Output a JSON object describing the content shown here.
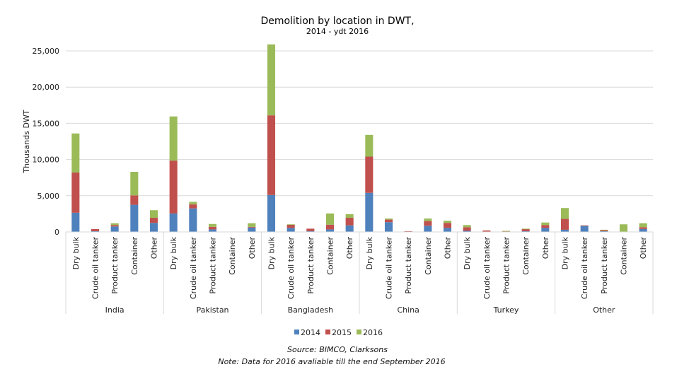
{
  "chart_data": {
    "type": "bar",
    "stacked": true,
    "title": "Demolition by location in DWT,",
    "subtitle": "2014 - ydt 2016",
    "xlabel": "",
    "ylabel": "Thousands DWT",
    "ylim": [
      0,
      25000
    ],
    "yticks": [
      0,
      5000,
      10000,
      15000,
      20000,
      25000
    ],
    "ytick_labels": [
      "0",
      "5,000",
      "10,000",
      "15,000",
      "20,000",
      "25,000"
    ],
    "grid": true,
    "legend_position": "bottom",
    "groups": [
      "India",
      "Pakistan",
      "Bangladesh",
      "China",
      "Turkey",
      "Other"
    ],
    "categories": [
      "Dry bulk",
      "Crude oil tanker",
      "Product tanker",
      "Container",
      "Other"
    ],
    "series": [
      {
        "name": "2014",
        "color": "#4f81bd",
        "values": [
          [
            2650,
            100,
            750,
            3750,
            1250
          ],
          [
            2550,
            3250,
            350,
            0,
            600
          ],
          [
            5100,
            550,
            100,
            350,
            900
          ],
          [
            5400,
            1350,
            50,
            850,
            550
          ],
          [
            150,
            50,
            50,
            100,
            550
          ],
          [
            300,
            850,
            100,
            0,
            400
          ]
        ]
      },
      {
        "name": "2015",
        "color": "#c0504d",
        "values": [
          [
            5550,
            300,
            200,
            1300,
            700
          ],
          [
            7300,
            550,
            350,
            0,
            100
          ],
          [
            11000,
            450,
            350,
            650,
            1050
          ],
          [
            5000,
            350,
            50,
            650,
            700
          ],
          [
            500,
            150,
            50,
            300,
            400
          ],
          [
            1500,
            50,
            150,
            0,
            250
          ]
        ]
      },
      {
        "name": "2016",
        "color": "#9bbb59",
        "values": [
          [
            5400,
            0,
            250,
            3250,
            1050
          ],
          [
            6100,
            350,
            400,
            50,
            500
          ],
          [
            9800,
            50,
            0,
            1550,
            500
          ],
          [
            3000,
            150,
            0,
            350,
            300
          ],
          [
            300,
            0,
            50,
            50,
            350
          ],
          [
            1500,
            0,
            50,
            1050,
            550
          ]
        ]
      }
    ],
    "source": "Source: BIMCO, Clarksons",
    "note": "Note: Data for 2016 avaliable till the end September 2016"
  }
}
